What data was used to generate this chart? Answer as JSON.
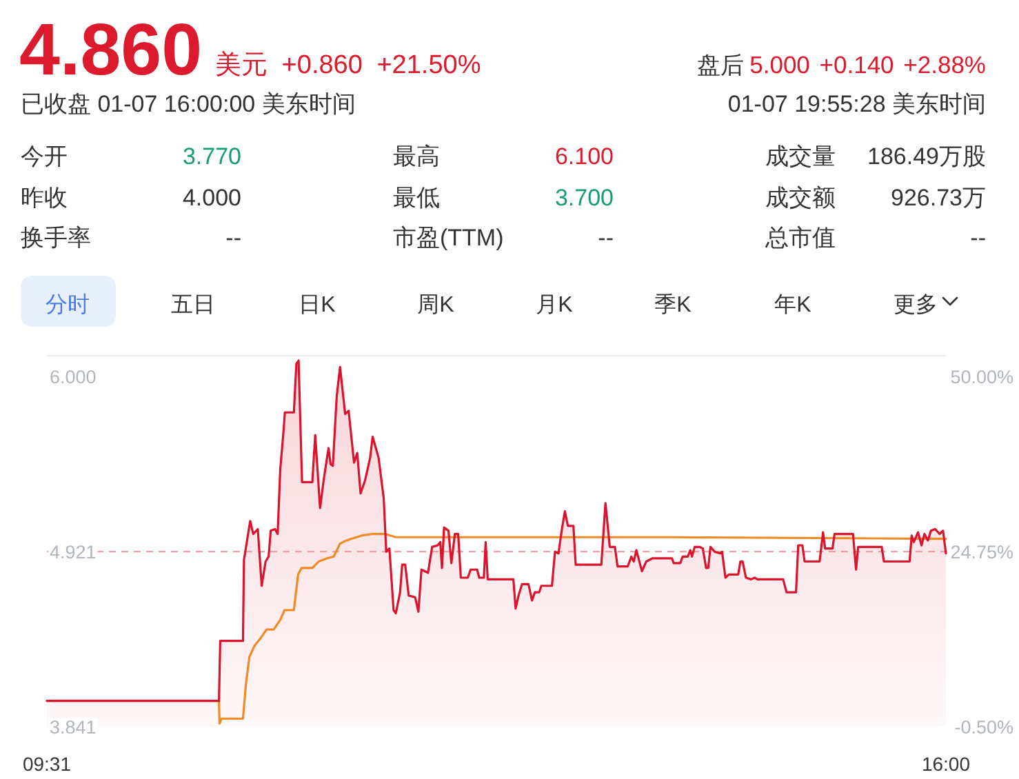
{
  "chart_data": [
    {
      "type": "other",
      "annotations": [
        "4.860",
        "美元 +0.860 +21.50%",
        "盘后",
        "5.000 +0.140 +2.88%",
        "已收盘 01-07 16:00:00 美东时间",
        "01-07 19:55:28 美东时间",
        "今开",
        "3.770",
        "最高",
        "6.100",
        "成交量",
        "186.49万股",
        "昨收",
        "4.000",
        "最低",
        "3.700",
        "成交额",
        "926.73万",
        "换手率",
        "--",
        "市盈(TTM)",
        "--",
        "总市值",
        "--",
        "分时",
        "五日",
        "日K",
        "周K",
        "月K",
        "季K",
        "年K",
        "更多"
      ]
    },
    {
      "type": "line",
      "xlim": [
        9.517,
        16.0
      ],
      "xticks": [
        {
          "value": 9.517,
          "label": "09:31"
        },
        {
          "value": 16.0,
          "label": "16:00"
        }
      ],
      "ylim": [
        3.841,
        6.13
      ],
      "yticks": [
        {
          "value": 3.841,
          "label": "3.841"
        },
        {
          "value": 4.921,
          "label": "4.921"
        },
        {
          "value": 6.0,
          "label": "6.000"
        }
      ],
      "y2lim": [
        -0.5,
        53.04
      ],
      "y2ticks": [
        {
          "value": -0.5,
          "label": "-0.50%"
        },
        {
          "value": 24.75,
          "label": "24.75%"
        },
        {
          "value": 50,
          "label": "50.00%"
        }
      ],
      "ref_lines": [
        {
          "axis": "y",
          "value": 4.921,
          "color": "#f5a0a4",
          "line_style": "dashed"
        }
      ],
      "series": [
        {
          "type": "area",
          "color": "#d9142c",
          "x": [
            9.517,
            10.758,
            10.767,
            10.931,
            10.938,
            10.983,
            11.005,
            11.038,
            11.066,
            11.094,
            11.116,
            11.131,
            11.162,
            11.181,
            11.2,
            11.224,
            11.233,
            11.298,
            11.316,
            11.332,
            11.357,
            11.431,
            11.452,
            11.487,
            11.514,
            11.548,
            11.563,
            11.579,
            11.607,
            11.631,
            11.668,
            11.693,
            11.732,
            11.755,
            11.779,
            11.811,
            11.848,
            11.866,
            11.909,
            11.946,
            11.964,
            11.987,
            12.017,
            12.033,
            12.064,
            12.079,
            12.101,
            12.126,
            12.172,
            12.196,
            12.218,
            12.265,
            12.295,
            12.335,
            12.354,
            12.366,
            12.381,
            12.413,
            12.434,
            12.459,
            12.483,
            12.502,
            12.552,
            12.573,
            12.619,
            12.635,
            12.668,
            12.681,
            12.696,
            12.881,
            12.897,
            12.918,
            12.943,
            12.99,
            13.015,
            13.036,
            13.067,
            13.082,
            13.159,
            13.181,
            13.206,
            13.231,
            13.252,
            13.274,
            13.314,
            13.33,
            13.515,
            13.545,
            13.576,
            13.613,
            13.632,
            13.706,
            13.731,
            13.749,
            13.768,
            13.808,
            13.839,
            13.885,
            14.024,
            14.037,
            14.085,
            14.101,
            14.138,
            14.157,
            14.169,
            14.188,
            14.225,
            14.247,
            14.271,
            14.286,
            14.302,
            14.333,
            14.373,
            14.386,
            14.41,
            14.435,
            14.502,
            14.518,
            14.534,
            14.558,
            14.595,
            14.62,
            14.641,
            14.826,
            14.851,
            14.919,
            14.935,
            14.965,
            14.981,
            15.089,
            15.114,
            15.129,
            15.182,
            15.197,
            15.33,
            15.352,
            15.367,
            15.537,
            15.553,
            15.738,
            15.753,
            15.768,
            15.799,
            15.824,
            15.845,
            15.87,
            15.892,
            15.923,
            15.954,
            15.979,
            16.0
          ],
          "values": [
            4.0,
            4.0,
            4.37,
            4.37,
            4.87,
            5.11,
            5.03,
            5.06,
            4.71,
            4.86,
            4.89,
            5.05,
            5.06,
            5.03,
            5.43,
            5.67,
            5.78,
            5.78,
            6.08,
            6.1,
            5.35,
            5.35,
            5.64,
            5.19,
            5.37,
            5.56,
            5.46,
            5.45,
            5.88,
            6.06,
            5.77,
            5.79,
            5.47,
            5.53,
            5.28,
            5.36,
            5.5,
            5.63,
            5.5,
            5.25,
            4.92,
            4.94,
            4.56,
            4.54,
            4.67,
            4.84,
            4.84,
            4.65,
            4.64,
            4.55,
            4.81,
            4.79,
            4.95,
            4.96,
            4.98,
            4.82,
            5.07,
            5.05,
            4.85,
            5.03,
            5.03,
            4.76,
            4.76,
            4.81,
            4.81,
            4.76,
            4.76,
            4.98,
            4.75,
            4.75,
            4.57,
            4.65,
            4.72,
            4.72,
            4.62,
            4.67,
            4.67,
            4.71,
            4.71,
            4.92,
            4.91,
            5.06,
            5.17,
            5.08,
            5.08,
            4.84,
            4.84,
            5.22,
            4.95,
            4.95,
            4.83,
            4.83,
            4.89,
            4.86,
            4.93,
            4.8,
            4.86,
            4.88,
            4.88,
            4.85,
            4.85,
            4.89,
            4.89,
            4.93,
            4.89,
            4.95,
            4.95,
            4.94,
            4.82,
            4.82,
            4.95,
            4.92,
            4.91,
            4.92,
            4.76,
            4.78,
            4.78,
            4.86,
            4.86,
            4.76,
            4.75,
            4.76,
            4.75,
            4.75,
            4.67,
            4.67,
            4.96,
            4.96,
            4.86,
            4.86,
            5.04,
            4.94,
            4.94,
            5.03,
            5.03,
            4.81,
            4.95,
            4.95,
            4.86,
            4.86,
            5.02,
            4.98,
            5.04,
            4.96,
            5.03,
            4.99,
            5.05,
            5.06,
            5.03,
            5.05,
            4.91
          ]
        },
        {
          "type": "line",
          "color": "#f08a24",
          "x": [
            9.517,
            10.758,
            10.762,
            10.776,
            10.931,
            10.952,
            10.977,
            11.014,
            11.061,
            11.101,
            11.153,
            11.2,
            11.23,
            11.298,
            11.329,
            11.353,
            11.431,
            11.477,
            11.538,
            11.585,
            11.631,
            11.677,
            11.786,
            11.863,
            11.955,
            12.033,
            12.928,
            14.009,
            16.0
          ],
          "values": [
            4.0,
            4.0,
            3.86,
            3.89,
            3.89,
            4.1,
            4.27,
            4.34,
            4.39,
            4.44,
            4.44,
            4.5,
            4.56,
            4.56,
            4.78,
            4.82,
            4.82,
            4.86,
            4.88,
            4.89,
            4.97,
            4.99,
            5.02,
            5.03,
            5.03,
            5.01,
            5.01,
            5.01,
            5.0
          ]
        }
      ]
    }
  ]
}
